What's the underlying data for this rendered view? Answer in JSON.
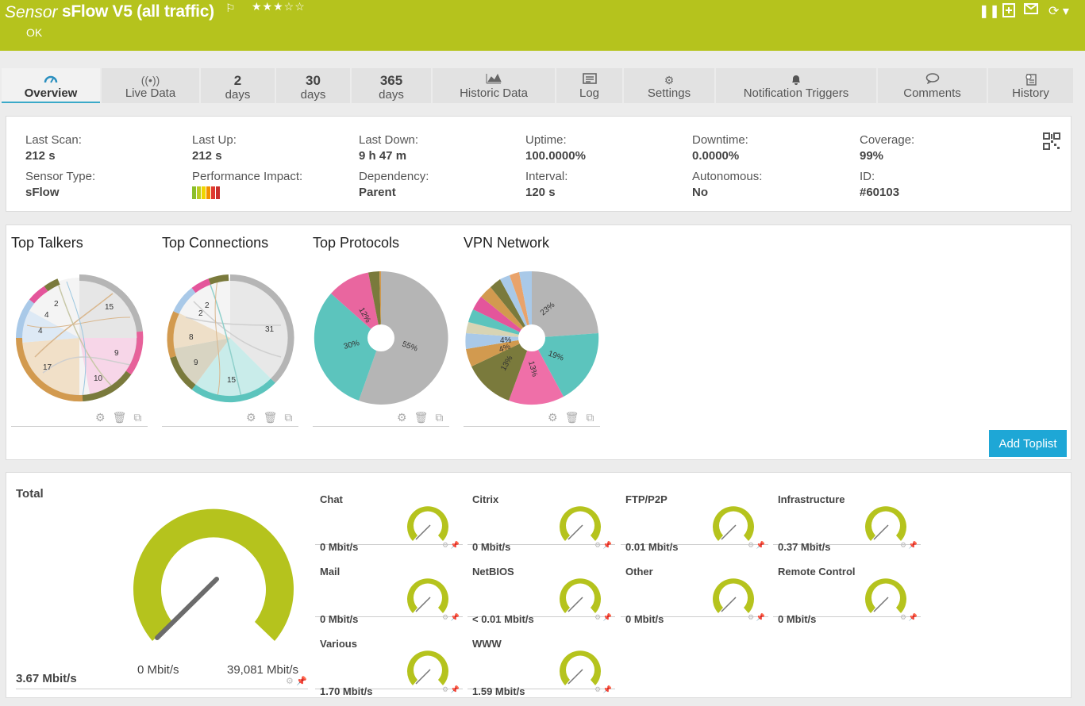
{
  "header": {
    "sensor_keyword": "Sensor",
    "sensor_name": "sFlow V5 (all traffic)",
    "flag_icon": "flag-icon",
    "stars": "★★★☆☆",
    "status": "OK",
    "bg_color": "#b5c31d",
    "tools": [
      "pause-icon",
      "add-icon",
      "email-icon",
      "refresh-icon"
    ]
  },
  "tabs": [
    {
      "icon": "gauge-icon",
      "label": "Overview",
      "active": true
    },
    {
      "icon": "live-icon",
      "label": "Live Data"
    },
    {
      "num": "2",
      "label": "days"
    },
    {
      "num": "30",
      "label": "days"
    },
    {
      "num": "365",
      "label": "days"
    },
    {
      "icon": "chart-icon",
      "label": "Historic Data"
    },
    {
      "icon": "log-icon",
      "label": "Log"
    },
    {
      "icon": "gear-icon",
      "label": "Settings"
    },
    {
      "icon": "bell-icon",
      "label": "Notification Triggers"
    },
    {
      "icon": "comment-icon",
      "label": "Comments"
    },
    {
      "icon": "history-icon",
      "label": "History"
    }
  ],
  "info": {
    "last_scan": {
      "label": "Last Scan:",
      "value": "212 s"
    },
    "last_up": {
      "label": "Last Up:",
      "value": "212 s"
    },
    "last_down": {
      "label": "Last Down:",
      "value": "9 h 47 m"
    },
    "uptime": {
      "label": "Uptime:",
      "value": "100.0000%"
    },
    "downtime": {
      "label": "Downtime:",
      "value": "0.0000%"
    },
    "coverage": {
      "label": "Coverage:",
      "value": "99%"
    },
    "sensor_type": {
      "label": "Sensor Type:",
      "value": "sFlow"
    },
    "perf_impact": {
      "label": "Performance Impact:"
    },
    "dependency": {
      "label": "Dependency:",
      "value": "Parent"
    },
    "interval": {
      "label": "Interval:",
      "value": "120 s"
    },
    "autonomous": {
      "label": "Autonomous:",
      "value": "No"
    },
    "id": {
      "label": "ID:",
      "value": "#60103"
    }
  },
  "toplists": {
    "items": [
      {
        "title": "Top Talkers",
        "labels": [
          "15",
          "9",
          "10",
          "17",
          "4",
          "4",
          "2"
        ]
      },
      {
        "title": "Top Connections",
        "labels": [
          "31",
          "15",
          "9",
          "8",
          "2",
          "2"
        ]
      },
      {
        "title": "Top Protocols",
        "labels": [
          "55%",
          "30%",
          "12%"
        ]
      },
      {
        "title": "VPN Network",
        "labels": [
          "23%",
          "19%",
          "13%",
          "13%",
          "4%",
          "4%"
        ]
      }
    ],
    "add_button": "Add Toplist"
  },
  "gauges": {
    "total": {
      "label": "Total",
      "value": "3.67 Mbit/s",
      "min": "0 Mbit/s",
      "max": "39,081 Mbit/s"
    },
    "small": [
      {
        "name": "Chat",
        "value": "0 Mbit/s"
      },
      {
        "name": "Citrix",
        "value": "0 Mbit/s"
      },
      {
        "name": "FTP/P2P",
        "value": "0.01 Mbit/s"
      },
      {
        "name": "Infrastructure",
        "value": "0.37 Mbit/s"
      },
      {
        "name": "Mail",
        "value": "0 Mbit/s"
      },
      {
        "name": "NetBIOS",
        "value": "< 0.01 Mbit/s"
      },
      {
        "name": "Other",
        "value": "0 Mbit/s"
      },
      {
        "name": "Remote Control",
        "value": "0 Mbit/s"
      },
      {
        "name": "Various",
        "value": "1.70 Mbit/s"
      },
      {
        "name": "WWW",
        "value": "1.59 Mbit/s"
      }
    ]
  }
}
